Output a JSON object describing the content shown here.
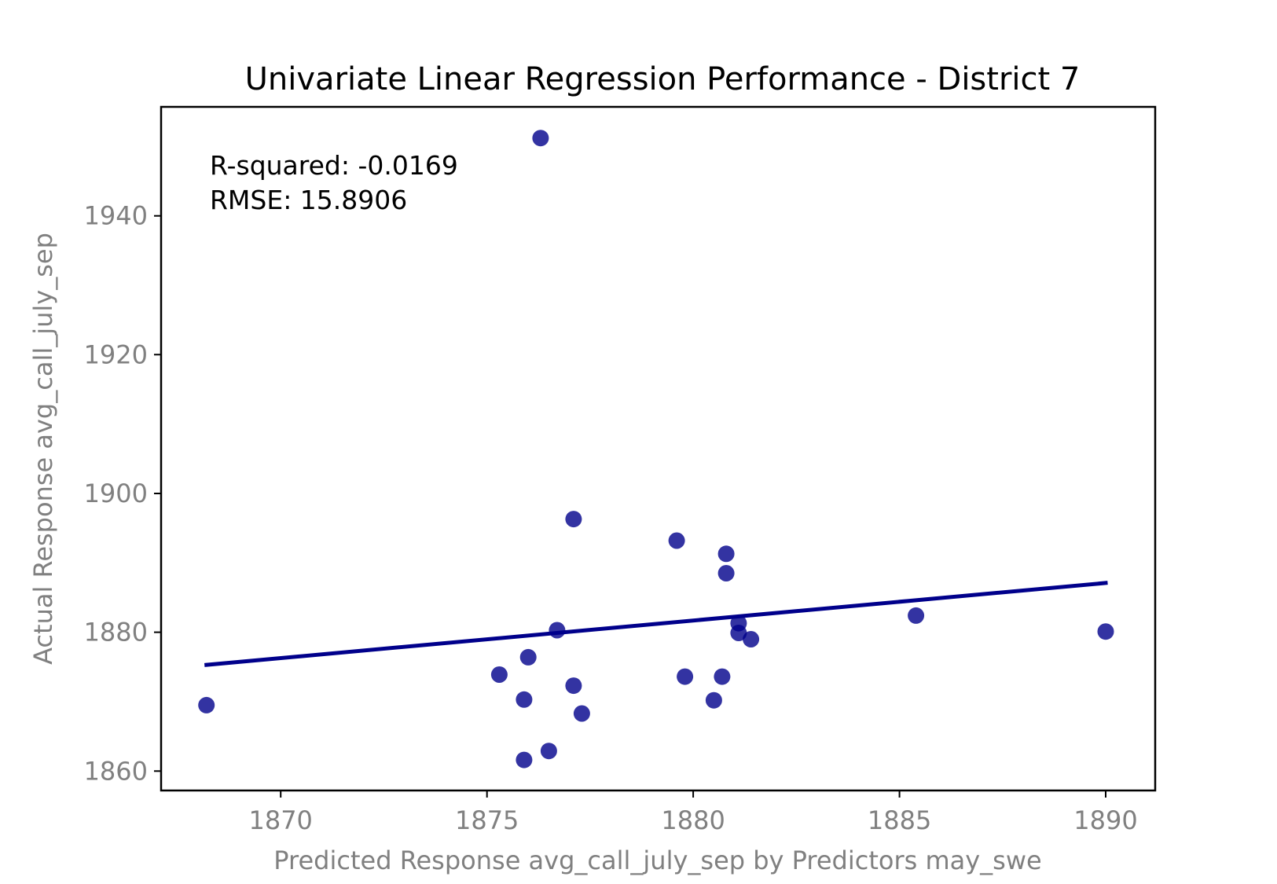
{
  "chart_data": {
    "type": "scatter",
    "title": "Univariate Linear Regression Performance - District 7",
    "xlabel": "Predicted Response avg_call_july_sep by Predictors may_swe",
    "ylabel": "Actual Response avg_call_july_sep",
    "xlim": [
      1867.1,
      1891.2
    ],
    "ylim": [
      1857.2,
      1955.7
    ],
    "xticks": [
      1870,
      1875,
      1880,
      1885,
      1890
    ],
    "yticks": [
      1860,
      1880,
      1900,
      1920,
      1940
    ],
    "grid": false,
    "annotations": [
      "R-squared: -0.0169",
      "RMSE: 15.8906"
    ],
    "point_color": "#00008B",
    "line_color": "#00008B",
    "points": [
      {
        "x": 1868.2,
        "y": 1869.5
      },
      {
        "x": 1875.3,
        "y": 1873.9
      },
      {
        "x": 1875.9,
        "y": 1870.3
      },
      {
        "x": 1875.9,
        "y": 1861.6
      },
      {
        "x": 1876.0,
        "y": 1876.4
      },
      {
        "x": 1876.3,
        "y": 1951.2
      },
      {
        "x": 1876.5,
        "y": 1862.9
      },
      {
        "x": 1876.7,
        "y": 1880.3
      },
      {
        "x": 1877.1,
        "y": 1896.3
      },
      {
        "x": 1877.1,
        "y": 1872.3
      },
      {
        "x": 1877.3,
        "y": 1868.3
      },
      {
        "x": 1879.6,
        "y": 1893.2
      },
      {
        "x": 1879.8,
        "y": 1873.6
      },
      {
        "x": 1880.5,
        "y": 1870.2
      },
      {
        "x": 1880.7,
        "y": 1873.6
      },
      {
        "x": 1880.8,
        "y": 1891.3
      },
      {
        "x": 1880.8,
        "y": 1888.5
      },
      {
        "x": 1881.1,
        "y": 1881.3
      },
      {
        "x": 1881.1,
        "y": 1879.9
      },
      {
        "x": 1881.4,
        "y": 1879.0
      },
      {
        "x": 1885.4,
        "y": 1882.4
      },
      {
        "x": 1890.0,
        "y": 1880.1
      }
    ],
    "fit_line": {
      "x": [
        1868.2,
        1890.0
      ],
      "y": [
        1875.3,
        1887.1
      ]
    }
  }
}
